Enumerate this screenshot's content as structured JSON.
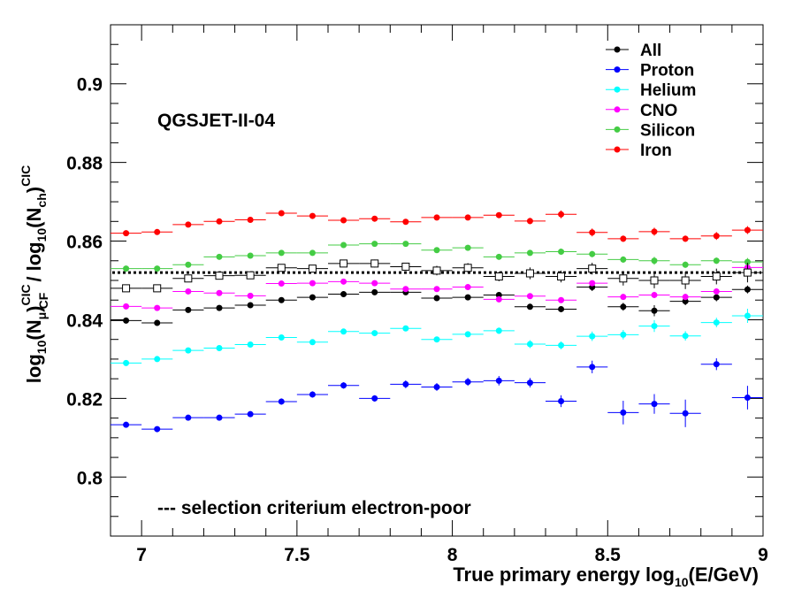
{
  "chart_data": {
    "type": "scatter",
    "title": "",
    "xlabel": "True primary energy log10(E/GeV)",
    "ylabel": "log10(Nμ)CF^CIC / log10(Nch)^CIC",
    "xlabel_parts": {
      "main": "True primary energy log",
      "sub": "10",
      "tail": "(E/GeV)"
    },
    "ylabel_parts": {
      "p1": "log",
      "s1": "10",
      "p2": "(N",
      "s2": "μ",
      "p3": ")",
      "sup1": "CIC",
      "sub1": "CF",
      "p4": " / log",
      "s3": "10",
      "p5": "(N",
      "s4": "ch",
      "p6": ")",
      "sup2": "CIC"
    },
    "xlim": [
      6.9,
      9.0
    ],
    "ylim": [
      0.785,
      0.915
    ],
    "x_ticks": [
      7,
      7.5,
      8,
      8.5,
      9
    ],
    "x_tick_labels": [
      "7",
      "7.5",
      "8",
      "8.5",
      "9"
    ],
    "y_ticks": [
      0.8,
      0.82,
      0.84,
      0.86,
      0.88,
      0.9
    ],
    "y_tick_labels": [
      "0.8",
      "0.82",
      "0.84",
      "0.86",
      "0.88",
      "0.9"
    ],
    "x_bin_halfwidth": 0.05,
    "x": [
      6.95,
      7.05,
      7.15,
      7.25,
      7.35,
      7.45,
      7.55,
      7.65,
      7.75,
      7.85,
      7.95,
      8.05,
      8.15,
      8.25,
      8.35,
      8.45,
      8.55,
      8.65,
      8.75,
      8.85,
      8.95
    ],
    "reference_line": {
      "y": 0.852,
      "style": "dotted"
    },
    "annotations": {
      "model": "QGSJET-II-04",
      "note": "--- selection criterium electron-poor"
    },
    "legend_position": "top-right",
    "series": [
      {
        "name": "All",
        "color": "#000000",
        "values": [
          0.8398,
          0.8392,
          0.8425,
          0.843,
          0.8437,
          0.845,
          0.8457,
          0.8465,
          0.847,
          0.847,
          0.8455,
          0.8457,
          0.8463,
          0.8433,
          0.8427,
          0.8483,
          0.8433,
          0.8423,
          0.8447,
          0.8457,
          0.8477
        ],
        "errors": [
          0.0004,
          0.0004,
          0.0004,
          0.0004,
          0.0004,
          0.0004,
          0.0004,
          0.0004,
          0.0004,
          0.0004,
          0.0004,
          0.0005,
          0.0005,
          0.0005,
          0.0005,
          0.001,
          0.001,
          0.0014,
          0.001,
          0.001,
          0.001
        ]
      },
      {
        "name": "Proton",
        "color": "#0000ff",
        "values": [
          0.8133,
          0.8122,
          0.8151,
          0.8151,
          0.816,
          0.8192,
          0.821,
          0.8233,
          0.82,
          0.8236,
          0.8229,
          0.8242,
          0.8245,
          0.824,
          0.8193,
          0.828,
          0.8164,
          0.8186,
          0.8162,
          0.8287,
          0.8202
        ],
        "errors": [
          0.0006,
          0.0006,
          0.0006,
          0.0006,
          0.0007,
          0.0008,
          0.0008,
          0.0008,
          0.0008,
          0.001,
          0.001,
          0.001,
          0.0012,
          0.0012,
          0.0015,
          0.0016,
          0.003,
          0.0025,
          0.0035,
          0.0015,
          0.003
        ]
      },
      {
        "name": "Helium",
        "color": "#00ffff",
        "values": [
          0.829,
          0.83,
          0.8322,
          0.8328,
          0.8337,
          0.8355,
          0.8343,
          0.837,
          0.8366,
          0.8378,
          0.835,
          0.8363,
          0.8372,
          0.8338,
          0.8335,
          0.8358,
          0.8362,
          0.8384,
          0.8359,
          0.8393,
          0.841
        ],
        "errors": [
          0.0004,
          0.0004,
          0.0004,
          0.0004,
          0.0004,
          0.0005,
          0.0005,
          0.0005,
          0.0005,
          0.0006,
          0.0006,
          0.0006,
          0.0008,
          0.001,
          0.001,
          0.0012,
          0.0012,
          0.0015,
          0.0012,
          0.0012,
          0.0018
        ]
      },
      {
        "name": "CNO",
        "color": "#ff00ff",
        "values": [
          0.8434,
          0.843,
          0.8472,
          0.8468,
          0.8461,
          0.8492,
          0.8493,
          0.8497,
          0.8493,
          0.8478,
          0.8478,
          0.8483,
          0.8452,
          0.846,
          0.845,
          0.8493,
          0.8458,
          0.8463,
          0.8458,
          0.8472,
          0.8533
        ],
        "errors": [
          0.0004,
          0.0004,
          0.0004,
          0.0004,
          0.0004,
          0.0004,
          0.0004,
          0.0004,
          0.0005,
          0.0005,
          0.0005,
          0.0005,
          0.0005,
          0.0006,
          0.0006,
          0.0006,
          0.0006,
          0.0008,
          0.0008,
          0.0008,
          0.001
        ]
      },
      {
        "name": "Silicon",
        "color": "#44cc44",
        "values": [
          0.853,
          0.853,
          0.854,
          0.856,
          0.8563,
          0.857,
          0.857,
          0.859,
          0.8593,
          0.8593,
          0.8577,
          0.8583,
          0.856,
          0.857,
          0.8573,
          0.8567,
          0.8553,
          0.855,
          0.854,
          0.855,
          0.8547
        ],
        "errors": [
          0.0004,
          0.0004,
          0.0004,
          0.0004,
          0.0004,
          0.0004,
          0.0004,
          0.0004,
          0.0005,
          0.0005,
          0.0005,
          0.0005,
          0.0005,
          0.0006,
          0.0006,
          0.0008,
          0.0008,
          0.001,
          0.0008,
          0.0008,
          0.001
        ]
      },
      {
        "name": "Iron",
        "color": "#ff0000",
        "values": [
          0.862,
          0.8623,
          0.8642,
          0.865,
          0.8654,
          0.8671,
          0.8664,
          0.8653,
          0.8657,
          0.8649,
          0.866,
          0.866,
          0.8666,
          0.8651,
          0.8668,
          0.8622,
          0.8606,
          0.8624,
          0.8606,
          0.8613,
          0.8628
        ],
        "errors": [
          0.0004,
          0.0004,
          0.0004,
          0.0004,
          0.0004,
          0.0004,
          0.0004,
          0.0004,
          0.0005,
          0.0005,
          0.0005,
          0.0005,
          0.0006,
          0.0008,
          0.001,
          0.001,
          0.0008,
          0.001,
          0.0008,
          0.001,
          0.001
        ]
      },
      {
        "name": "Selection (electron-poor)",
        "color": "#000000",
        "marker": "open-square",
        "in_legend": false,
        "values": [
          0.848,
          0.848,
          0.8505,
          0.8512,
          0.8513,
          0.8532,
          0.853,
          0.8543,
          0.8543,
          0.8535,
          0.8525,
          0.8532,
          0.851,
          0.8518,
          0.851,
          0.853,
          0.8505,
          0.85,
          0.85,
          0.851,
          0.852
        ],
        "errors": [
          0.0006,
          0.0006,
          0.0006,
          0.0006,
          0.0007,
          0.0008,
          0.0008,
          0.0008,
          0.001,
          0.001,
          0.0012,
          0.0012,
          0.0012,
          0.0015,
          0.0015,
          0.0015,
          0.0018,
          0.002,
          0.0022,
          0.002,
          0.0025
        ]
      }
    ]
  }
}
